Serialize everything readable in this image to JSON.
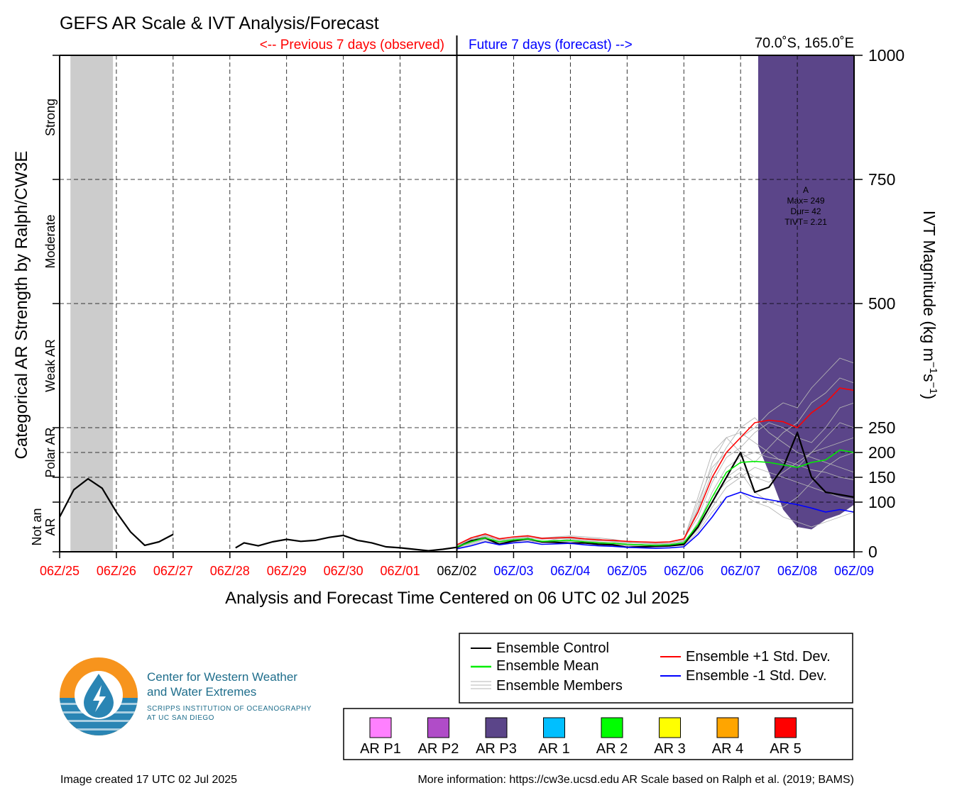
{
  "chart_data": {
    "type": "line",
    "title": "GEFS AR Scale & IVT Analysis/Forecast",
    "subtitle_left": "<-- Previous 7 days (observed)",
    "subtitle_right": "Future 7 days (forecast) -->",
    "location": "70.0˚S, 165.0˚E",
    "xlabel": "Analysis and Forecast Time Centered on 06 UTC 02 Jul 2025",
    "ylabel_left": "Categorical AR Strength by Ralph/CW3E",
    "ylabel_right_main": "IVT Magnitude (kg m",
    "ylabel_right_sup1": "−1",
    "ylabel_right_mid": "s",
    "ylabel_right_sup2": "−1",
    "ylabel_right_end": ")",
    "x_range_days": [
      0,
      14
    ],
    "ylim": [
      0,
      1000
    ],
    "y_ticks": [
      0,
      100,
      150,
      200,
      250,
      500,
      750,
      1000
    ],
    "y_tick_labels": [
      "0",
      "100",
      "150",
      "200",
      "250",
      "500",
      "750",
      "1000"
    ],
    "x_tick_labels": [
      "06Z/25",
      "06Z/26",
      "06Z/27",
      "06Z/28",
      "06Z/29",
      "06Z/30",
      "06Z/01",
      "06Z/02",
      "06Z/03",
      "06Z/04",
      "06Z/05",
      "06Z/06",
      "06Z/07",
      "06Z/08",
      "06Z/09"
    ],
    "x_tick_colors": [
      "#ff0000",
      "#ff0000",
      "#ff0000",
      "#ff0000",
      "#ff0000",
      "#ff0000",
      "#ff0000",
      "#000000",
      "#0000ff",
      "#0000ff",
      "#0000ff",
      "#0000ff",
      "#0000ff",
      "#0000ff",
      "#0000ff"
    ],
    "categories": [
      {
        "label": "Strong",
        "lo": 750,
        "hi": 1000
      },
      {
        "label": "Moderate",
        "lo": 500,
        "hi": 750
      },
      {
        "label": "Weak AR",
        "lo": 250,
        "hi": 500
      },
      {
        "label": "Polar AR",
        "lo": 150,
        "hi": 250
      },
      {
        "label": "Not an AR",
        "lo": 0,
        "hi": 100
      }
    ],
    "category_label_lines": {
      "Polar AR": [
        "Polar AR"
      ],
      "Not an AR": [
        "Not an",
        "AR"
      ]
    },
    "shaded_periods": [
      {
        "start": 0.19,
        "end": 0.94,
        "color": "#cccccc"
      },
      {
        "start": 12.31,
        "end": 14.0,
        "color": "#5b4589",
        "notch": {
          "x": [
            12.25,
            12.5,
            12.75,
            13.0,
            13.25,
            13.5,
            13.75,
            14.0
          ],
          "y": [
            230,
            160,
            85,
            50,
            45,
            65,
            75,
            95
          ]
        }
      }
    ],
    "event_annotation": {
      "x": 13.15,
      "lines": [
        "A",
        "Max= 249",
        "Dur= 42",
        "TIVT= 2.21"
      ],
      "y_top": 740
    },
    "series": [
      {
        "name": "Ensemble Control",
        "color": "#000000",
        "x": [
          0,
          0.25,
          0.5,
          0.75,
          1.0,
          1.25,
          1.5,
          1.75,
          2.0
        ],
        "values": [
          70,
          125,
          147,
          128,
          80,
          40,
          13,
          20,
          35
        ]
      },
      {
        "name": "Ensemble Control",
        "color": "#000000",
        "x": [
          3.1,
          3.25,
          3.5,
          3.75,
          4.0,
          4.25,
          4.5,
          4.75,
          5.0,
          5.25,
          5.5,
          5.75,
          6.0,
          6.25,
          6.5,
          6.75,
          7.0,
          7.25,
          7.5,
          7.75,
          8.0,
          8.25,
          8.5,
          8.75,
          9.0,
          9.25,
          9.5,
          9.75,
          10.0,
          10.25,
          10.5,
          10.75,
          11.0,
          11.25,
          11.5,
          11.75,
          12.0,
          12.25,
          12.5,
          12.75,
          13.0,
          13.25,
          13.5,
          13.75,
          14.0
        ],
        "values": [
          8,
          18,
          12,
          20,
          25,
          21,
          23,
          29,
          33,
          23,
          18,
          10,
          8,
          5,
          2,
          5,
          9,
          22,
          28,
          15,
          22,
          26,
          20,
          19,
          17,
          18,
          15,
          14,
          9,
          10,
          11,
          12,
          15,
          50,
          100,
          150,
          200,
          120,
          130,
          170,
          240,
          150,
          120,
          115,
          110
        ]
      },
      {
        "name": "Ensemble Mean",
        "color": "#00ee00",
        "x": [
          7.0,
          7.25,
          7.5,
          7.75,
          8.0,
          8.25,
          8.5,
          8.75,
          9.0,
          9.25,
          9.5,
          9.75,
          10.0,
          10.25,
          10.5,
          10.75,
          11.0,
          11.25,
          11.5,
          11.75,
          12.0,
          12.25,
          12.5,
          12.75,
          13.0,
          13.25,
          13.5,
          13.75,
          14.0
        ],
        "values": [
          10,
          20,
          28,
          20,
          24,
          26,
          21,
          22,
          23,
          20,
          18,
          17,
          15,
          14,
          13,
          14,
          18,
          55,
          110,
          160,
          180,
          182,
          180,
          175,
          170,
          180,
          185,
          205,
          200
        ]
      },
      {
        "name": "Ensemble +1 Std. Dev.",
        "color": "#ff0000",
        "x": [
          7.0,
          7.25,
          7.5,
          7.75,
          8.0,
          8.25,
          8.5,
          8.75,
          9.0,
          9.25,
          9.5,
          9.75,
          10.0,
          10.25,
          10.5,
          10.75,
          11.0,
          11.25,
          11.5,
          11.75,
          12.0,
          12.25,
          12.5,
          12.75,
          13.0,
          13.25,
          13.5,
          13.75,
          14.0
        ],
        "values": [
          14,
          28,
          36,
          26,
          30,
          32,
          27,
          28,
          29,
          26,
          24,
          23,
          21,
          20,
          19,
          20,
          26,
          80,
          150,
          200,
          230,
          260,
          265,
          262,
          250,
          280,
          300,
          330,
          325
        ]
      },
      {
        "name": "Ensemble -1 Std. Dev.",
        "color": "#0000ff",
        "x": [
          7.0,
          7.25,
          7.5,
          7.75,
          8.0,
          8.25,
          8.5,
          8.75,
          9.0,
          9.25,
          9.5,
          9.75,
          10.0,
          10.25,
          10.5,
          10.75,
          11.0,
          11.25,
          11.5,
          11.75,
          12.0,
          12.25,
          12.5,
          12.75,
          13.0,
          13.25,
          13.5,
          13.75,
          14.0
        ],
        "values": [
          6,
          12,
          20,
          14,
          18,
          20,
          15,
          16,
          17,
          14,
          12,
          11,
          9,
          8,
          7,
          8,
          10,
          35,
          70,
          110,
          120,
          110,
          105,
          100,
          95,
          88,
          80,
          85,
          80
        ]
      }
    ],
    "ensemble_members": {
      "name": "Ensemble Members",
      "color": "#b4b4b4",
      "x_start": 7.0,
      "x_step": 0.25,
      "members": [
        [
          8,
          22,
          33,
          20,
          28,
          30,
          18,
          22,
          26,
          22,
          20,
          18,
          14,
          15,
          12,
          16,
          20,
          90,
          180,
          230,
          200,
          180,
          210,
          240,
          260,
          300,
          320,
          350,
          340
        ],
        [
          10,
          16,
          25,
          15,
          20,
          24,
          22,
          18,
          20,
          16,
          15,
          12,
          10,
          9,
          11,
          12,
          14,
          60,
          110,
          140,
          160,
          120,
          100,
          90,
          110,
          140,
          170,
          190,
          200
        ],
        [
          12,
          26,
          30,
          25,
          22,
          28,
          26,
          28,
          30,
          27,
          26,
          20,
          16,
          14,
          13,
          15,
          22,
          100,
          170,
          200,
          230,
          250,
          280,
          300,
          290,
          330,
          360,
          390,
          380
        ],
        [
          9,
          19,
          27,
          18,
          24,
          25,
          21,
          24,
          20,
          18,
          17,
          15,
          13,
          12,
          12,
          13,
          16,
          45,
          90,
          130,
          150,
          170,
          160,
          150,
          140,
          130,
          120,
          110,
          105
        ],
        [
          11,
          24,
          36,
          22,
          26,
          27,
          20,
          26,
          27,
          24,
          22,
          21,
          19,
          18,
          16,
          17,
          24,
          110,
          200,
          230,
          240,
          220,
          200,
          180,
          170,
          200,
          230,
          260,
          250
        ],
        [
          7,
          14,
          22,
          16,
          19,
          21,
          18,
          20,
          22,
          19,
          17,
          15,
          12,
          11,
          10,
          11,
          13,
          40,
          80,
          110,
          120,
          100,
          90,
          70,
          60,
          50,
          60,
          70,
          80
        ],
        [
          13,
          28,
          34,
          27,
          30,
          33,
          28,
          30,
          32,
          30,
          28,
          25,
          20,
          18,
          17,
          19,
          26,
          70,
          140,
          190,
          210,
          240,
          260,
          250,
          230,
          220,
          250,
          290,
          300
        ],
        [
          10,
          20,
          29,
          19,
          23,
          26,
          22,
          21,
          23,
          21,
          19,
          18,
          15,
          14,
          13,
          14,
          17,
          55,
          120,
          170,
          190,
          200,
          190,
          185,
          175,
          165,
          160,
          150,
          145
        ],
        [
          8,
          18,
          26,
          17,
          22,
          23,
          19,
          19,
          21,
          20,
          16,
          16,
          14,
          13,
          12,
          13,
          15,
          50,
          100,
          150,
          170,
          150,
          140,
          160,
          180,
          200,
          210,
          220,
          230
        ],
        [
          12,
          25,
          32,
          24,
          27,
          29,
          25,
          27,
          28,
          26,
          24,
          22,
          18,
          17,
          15,
          16,
          21,
          85,
          160,
          210,
          250,
          270,
          240,
          220,
          200,
          190,
          180,
          170,
          160
        ]
      ]
    },
    "legend": {
      "placement": "bottom-right",
      "items": [
        {
          "label": "Ensemble Control",
          "color": "#000000"
        },
        {
          "label": "Ensemble Mean",
          "color": "#00ee00"
        },
        {
          "label": "Ensemble Members",
          "color": "#b4b4b4"
        },
        {
          "label": "Ensemble +1 Std. Dev.",
          "color": "#ff0000"
        },
        {
          "label": "Ensemble -1 Std. Dev.",
          "color": "#0000ff"
        }
      ]
    },
    "ar_scale_legend": [
      {
        "label": "AR P1",
        "color": "#ff80ff"
      },
      {
        "label": "AR P2",
        "color": "#b04cc8"
      },
      {
        "label": "AR P3",
        "color": "#5b4589"
      },
      {
        "label": "AR 1",
        "color": "#00bfff"
      },
      {
        "label": "AR 2",
        "color": "#00ff00"
      },
      {
        "label": "AR 3",
        "color": "#ffff00"
      },
      {
        "label": "AR 4",
        "color": "#ffa500"
      },
      {
        "label": "AR 5",
        "color": "#ff0000"
      }
    ]
  },
  "logo": {
    "org_line1": "Center for Western Weather",
    "org_line2": "and Water Extremes",
    "sub_line1": "SCRIPPS INSTITUTION OF OCEANOGRAPHY",
    "sub_line2": "AT UC SAN DIEGO",
    "orange": "#f7941d",
    "blue": "#2a85b4",
    "text_color": "#1f6e8c"
  },
  "footer": {
    "created": "Image created 17 UTC 02 Jul 2025",
    "info": "More information: https://cw3e.ucsd.edu AR Scale based on Ralph et al. (2019; BAMS)"
  }
}
